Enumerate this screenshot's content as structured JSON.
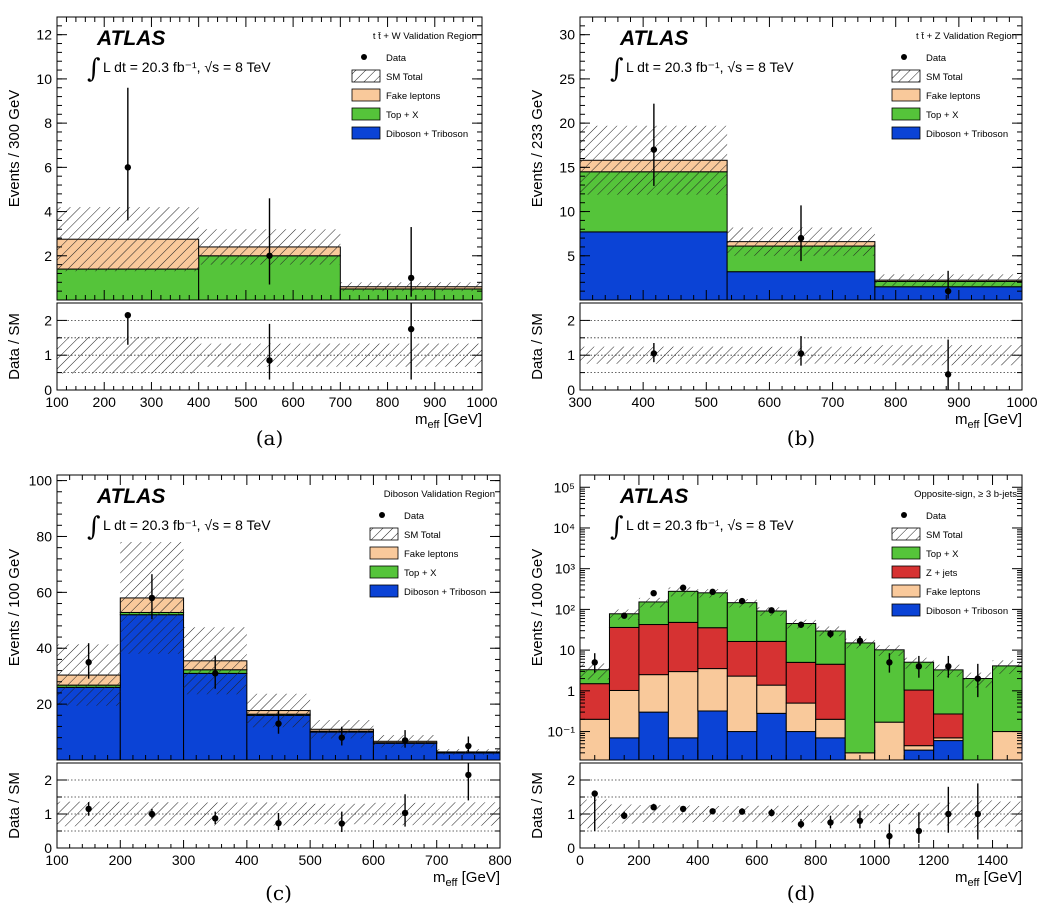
{
  "colors": {
    "fake": "#f9c99b",
    "topx": "#55c43a",
    "diboson": "#0b43d6",
    "zjets": "#d63232"
  },
  "chart_data": [
    {
      "id": "a",
      "type": "bar",
      "caption": "(a)",
      "atlas": "ATLAS",
      "lumi": "L dt = 20.3 fb⁻¹, √s = 8 TeV",
      "region": "t t̄ + W Validation Region",
      "xlabel": "m_eff [GeV]",
      "ylabel": "Events / 300 GeV",
      "ratio_ylabel": "Data / SM",
      "xlim": [
        100,
        1000
      ],
      "ylim": [
        0,
        12.8
      ],
      "log": false,
      "xticks": [
        100,
        200,
        300,
        400,
        500,
        600,
        700,
        800,
        900,
        1000
      ],
      "yticks": [
        2,
        4,
        6,
        8,
        10,
        12
      ],
      "ratio_ylim": [
        0,
        2.5
      ],
      "ratio_yticks": [
        0,
        1,
        2
      ],
      "bins": [
        100,
        400,
        700,
        1000
      ],
      "stack": [
        {
          "name": "Diboson + Triboson",
          "color_key": "diboson",
          "values": [
            0.0,
            0.0,
            0.0
          ]
        },
        {
          "name": "Top + X",
          "color_key": "topx",
          "values": [
            1.4,
            2.0,
            0.5
          ]
        },
        {
          "name": "Fake leptons",
          "color_key": "fake",
          "values": [
            1.35,
            0.4,
            0.1
          ]
        }
      ],
      "sm_total": [
        2.75,
        2.4,
        0.6
      ],
      "sm_err": [
        1.45,
        0.8,
        0.2
      ],
      "data": {
        "x": [
          250,
          550,
          850
        ],
        "y": [
          6,
          2,
          1
        ],
        "err_up": [
          3.6,
          2.6,
          2.3
        ],
        "err_dn": [
          2.4,
          1.3,
          0.85
        ]
      },
      "ratio": {
        "y": [
          2.15,
          0.85,
          1.75
        ],
        "err_up": [
          0.0,
          1.05,
          1.25
        ],
        "err_dn": [
          0.85,
          0.55,
          1.45
        ]
      },
      "legend": [
        "Data",
        "SM Total",
        "Fake leptons",
        "Top + X",
        "Diboson + Triboson"
      ]
    },
    {
      "id": "b",
      "type": "bar",
      "caption": "(b)",
      "atlas": "ATLAS",
      "lumi": "L dt = 20.3 fb⁻¹, √s = 8 TeV",
      "region": "t t̄ + Z Validation Region",
      "xlabel": "m_eff [GeV]",
      "ylabel": "Events / 233 GeV",
      "ratio_ylabel": "Data / SM",
      "xlim": [
        300,
        1000
      ],
      "ylim": [
        0,
        32
      ],
      "log": false,
      "xticks": [
        300,
        400,
        500,
        600,
        700,
        800,
        900,
        1000
      ],
      "yticks": [
        5,
        10,
        15,
        20,
        25,
        30
      ],
      "ratio_ylim": [
        0,
        2.5
      ],
      "ratio_yticks": [
        0,
        1,
        2
      ],
      "bins": [
        300,
        533,
        767,
        1000
      ],
      "stack": [
        {
          "name": "Diboson + Triboson",
          "color_key": "diboson",
          "values": [
            7.7,
            3.2,
            1.5
          ]
        },
        {
          "name": "Top + X",
          "color_key": "topx",
          "values": [
            6.8,
            2.9,
            0.6
          ]
        },
        {
          "name": "Fake leptons",
          "color_key": "fake",
          "values": [
            1.3,
            0.5,
            0.15
          ]
        }
      ],
      "sm_total": [
        15.8,
        6.6,
        2.25
      ],
      "sm_err": [
        3.9,
        1.6,
        0.65
      ],
      "data": {
        "x": [
          417,
          650,
          883
        ],
        "y": [
          17,
          7,
          1
        ],
        "err_up": [
          5.2,
          3.7,
          2.3
        ],
        "err_dn": [
          4.1,
          2.6,
          0.85
        ]
      },
      "ratio": {
        "y": [
          1.05,
          1.05,
          0.45
        ],
        "err_up": [
          0.3,
          0.5,
          1.0
        ],
        "err_dn": [
          0.25,
          0.35,
          0.45
        ]
      },
      "legend": [
        "Data",
        "SM Total",
        "Fake leptons",
        "Top + X",
        "Diboson + Triboson"
      ]
    },
    {
      "id": "c",
      "type": "bar",
      "caption": "(c)",
      "atlas": "ATLAS",
      "lumi": "L dt = 20.3 fb⁻¹, √s = 8 TeV",
      "region": "Diboson Validation Region",
      "xlabel": "m_eff [GeV]",
      "ylabel": "Events / 100 GeV",
      "ratio_ylabel": "Data / SM",
      "xlim": [
        100,
        800
      ],
      "ylim": [
        0,
        102
      ],
      "log": false,
      "xticks": [
        100,
        200,
        300,
        400,
        500,
        600,
        700,
        800
      ],
      "yticks": [
        20,
        40,
        60,
        80,
        100
      ],
      "ratio_ylim": [
        0,
        2.5
      ],
      "ratio_yticks": [
        0,
        1,
        2
      ],
      "bins": [
        100,
        200,
        300,
        400,
        500,
        600,
        700,
        800
      ],
      "stack": [
        {
          "name": "Diboson + Triboson",
          "color_key": "diboson",
          "values": [
            26,
            52,
            31,
            16,
            10,
            6,
            2.5
          ]
        },
        {
          "name": "Top + X",
          "color_key": "topx",
          "values": [
            0.8,
            0.8,
            1.3,
            0.4,
            0.3,
            0.2,
            0.1
          ]
        },
        {
          "name": "Fake leptons",
          "color_key": "fake",
          "values": [
            3.6,
            5.2,
            3.2,
            1.3,
            0.7,
            0.5,
            0.3
          ]
        }
      ],
      "sm_total": [
        30.4,
        58,
        35.5,
        17.7,
        11,
        6.7,
        2.9
      ],
      "sm_err": [
        11,
        20,
        12,
        6,
        3.3,
        2.2,
        1.0
      ],
      "data": {
        "x": [
          150,
          250,
          350,
          450,
          550,
          650,
          750
        ],
        "y": [
          35,
          58,
          31,
          13,
          8,
          7,
          5
        ],
        "err_up": [
          6.8,
          8.5,
          6.4,
          4.7,
          3.9,
          3.7,
          3.4
        ],
        "err_dn": [
          5.9,
          7.6,
          5.5,
          3.6,
          2.8,
          2.6,
          2.2
        ]
      },
      "ratio": {
        "y": [
          1.15,
          1.0,
          0.87,
          0.73,
          0.72,
          1.03,
          2.15
        ],
        "err_up": [
          0.2,
          0.15,
          0.2,
          0.3,
          0.35,
          0.55,
          1.05
        ],
        "err_dn": [
          0.2,
          0.13,
          0.17,
          0.2,
          0.25,
          0.4,
          0.75
        ]
      },
      "legend": [
        "Data",
        "SM Total",
        "Fake leptons",
        "Top + X",
        "Diboson + Triboson"
      ]
    },
    {
      "id": "d",
      "type": "bar",
      "caption": "(d)",
      "atlas": "ATLAS",
      "lumi": "L dt = 20.3 fb⁻¹, √s = 8 TeV",
      "region": "Opposite-sign, ≥ 3 b-jets",
      "xlabel": "m_eff [GeV]",
      "ylabel": "Events / 100 GeV",
      "ratio_ylabel": "Data / SM",
      "xlim": [
        0,
        1500
      ],
      "ylim": [
        0.02,
        200000
      ],
      "log": true,
      "xticks": [
        0,
        200,
        400,
        600,
        800,
        1000,
        1200,
        1400
      ],
      "xtick_step_minor": 100,
      "yticks": [
        0.1,
        1,
        10,
        100,
        1000,
        10000,
        100000
      ],
      "ytick_labels": [
        "10⁻¹",
        "1",
        "10",
        "10²",
        "10³",
        "10⁴",
        "10⁵"
      ],
      "ratio_ylim": [
        0,
        2.5
      ],
      "ratio_yticks": [
        0,
        1,
        2
      ],
      "bins": [
        0,
        100,
        200,
        300,
        400,
        500,
        600,
        700,
        800,
        900,
        1000,
        1100,
        1200,
        1300,
        1400,
        1500
      ],
      "stack": [
        {
          "name": "Diboson + Triboson",
          "color_key": "diboson",
          "values": [
            0,
            0.07,
            0.3,
            0.07,
            0.32,
            0.1,
            0.28,
            0.1,
            0.07,
            0,
            0,
            0.035,
            0.06,
            0,
            0
          ]
        },
        {
          "name": "Fake leptons",
          "color_key": "fake",
          "values": [
            0.2,
            0.95,
            2.2,
            2.9,
            3.2,
            2.2,
            1.1,
            0.4,
            0.13,
            0.03,
            0.17,
            0.01,
            0.01,
            0.005,
            0.1
          ]
        },
        {
          "name": "Z + jets",
          "color_key": "zjets",
          "values": [
            1.3,
            35,
            40,
            45,
            32,
            14,
            15,
            4.5,
            4.3,
            0,
            0,
            1,
            0.2,
            0,
            0
          ]
        },
        {
          "name": "Top + X",
          "color_key": "topx",
          "values": [
            1.8,
            42,
            110,
            230,
            220,
            130,
            75,
            40,
            25,
            15,
            10,
            4,
            3,
            2,
            4
          ]
        }
      ],
      "sm_total": [
        3.3,
        78,
        152,
        278,
        255,
        146,
        91,
        45,
        30,
        15,
        10.2,
        5,
        3.3,
        2,
        4.1
      ],
      "sm_err": [
        1.4,
        22,
        40,
        70,
        60,
        34,
        22,
        11,
        8,
        4,
        3,
        1.5,
        1.1,
        0.8,
        1.5
      ],
      "data": {
        "x": [
          50,
          150,
          250,
          350,
          450,
          550,
          650,
          750,
          850,
          950,
          1050,
          1150,
          1250,
          1350
        ],
        "y": [
          5,
          70,
          250,
          340,
          270,
          160,
          95,
          42,
          25,
          17,
          5,
          4,
          4,
          2
        ],
        "err_up": [
          3.4,
          9,
          16,
          19,
          17,
          13,
          10.5,
          7.5,
          6,
          5.2,
          3.4,
          3.2,
          3.2,
          2.6
        ],
        "err_dn": [
          2.2,
          8.4,
          15.5,
          18.4,
          16.4,
          12.6,
          9.7,
          6.5,
          5,
          4.1,
          2.2,
          1.9,
          1.9,
          1.3
        ]
      },
      "ratio": {
        "y": [
          1.6,
          0.95,
          1.2,
          1.15,
          1.08,
          1.07,
          1.03,
          0.7,
          0.75,
          0.8,
          0.35,
          0.5,
          1.0,
          1.0
        ],
        "err_up": [
          0.0,
          0.12,
          0.1,
          0.08,
          0.08,
          0.1,
          0.12,
          0.15,
          0.2,
          0.3,
          0.35,
          0.55,
          0.8,
          0.9
        ],
        "err_dn": [
          1.1,
          0.1,
          0.09,
          0.07,
          0.07,
          0.08,
          0.1,
          0.12,
          0.17,
          0.22,
          0.25,
          0.35,
          0.55,
          0.75
        ]
      },
      "legend": [
        "Data",
        "SM Total",
        "Top + X",
        "Z + jets",
        "Fake leptons",
        "Diboson + Triboson"
      ]
    }
  ]
}
